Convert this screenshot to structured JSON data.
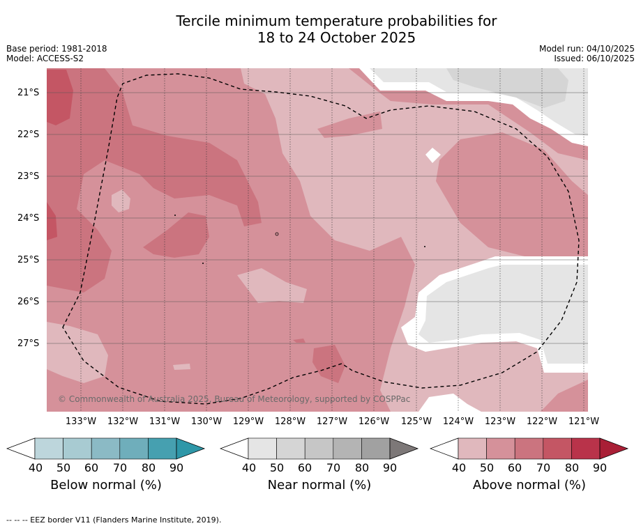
{
  "title": {
    "line1": "Tercile minimum temperature probabilities for",
    "line2": "18 to 24 October 2025"
  },
  "meta": {
    "base_period": "Base period: 1981-2018",
    "model": "Model: ACCESS-S2",
    "model_run": "Model run: 04/10/2025",
    "issued": "Issued: 06/10/2025"
  },
  "map": {
    "copyright": "© Commonwealth of Australia 2025, Bureau of Meteorology, supported by COSPPac",
    "lat_labels": [
      "21°S",
      "22°S",
      "23°S",
      "24°S",
      "25°S",
      "26°S",
      "27°S"
    ],
    "lon_labels": [
      "133°W",
      "132°W",
      "131°W",
      "130°W",
      "129°W",
      "128°W",
      "127°W",
      "126°W",
      "125°W",
      "124°W",
      "123°W",
      "122°W",
      "121°W"
    ]
  },
  "colorbars": [
    {
      "label": "Below normal (%)",
      "ticks": [
        "40",
        "50",
        "60",
        "70",
        "80",
        "90"
      ],
      "colors": [
        "#ffffff",
        "#bdd6dc",
        "#a8cbd2",
        "#8bbac5",
        "#6faebb",
        "#46a0b0",
        "#2e97a8"
      ]
    },
    {
      "label": "Near normal (%)",
      "ticks": [
        "40",
        "50",
        "60",
        "70",
        "80",
        "90"
      ],
      "colors": [
        "#ffffff",
        "#e5e5e5",
        "#d5d5d5",
        "#c6c6c6",
        "#b4b4b4",
        "#a1a1a1",
        "#7d7878"
      ]
    },
    {
      "label": "Above normal (%)",
      "ticks": [
        "40",
        "50",
        "60",
        "70",
        "80",
        "90"
      ],
      "colors": [
        "#ffffff",
        "#e0b8bd",
        "#d5919a",
        "#cb747f",
        "#c45664",
        "#b9334a",
        "#a91f36"
      ]
    }
  ],
  "footer": "--  --  -- EEZ border V11 (Flanders Marine Institute, 2019)."
}
